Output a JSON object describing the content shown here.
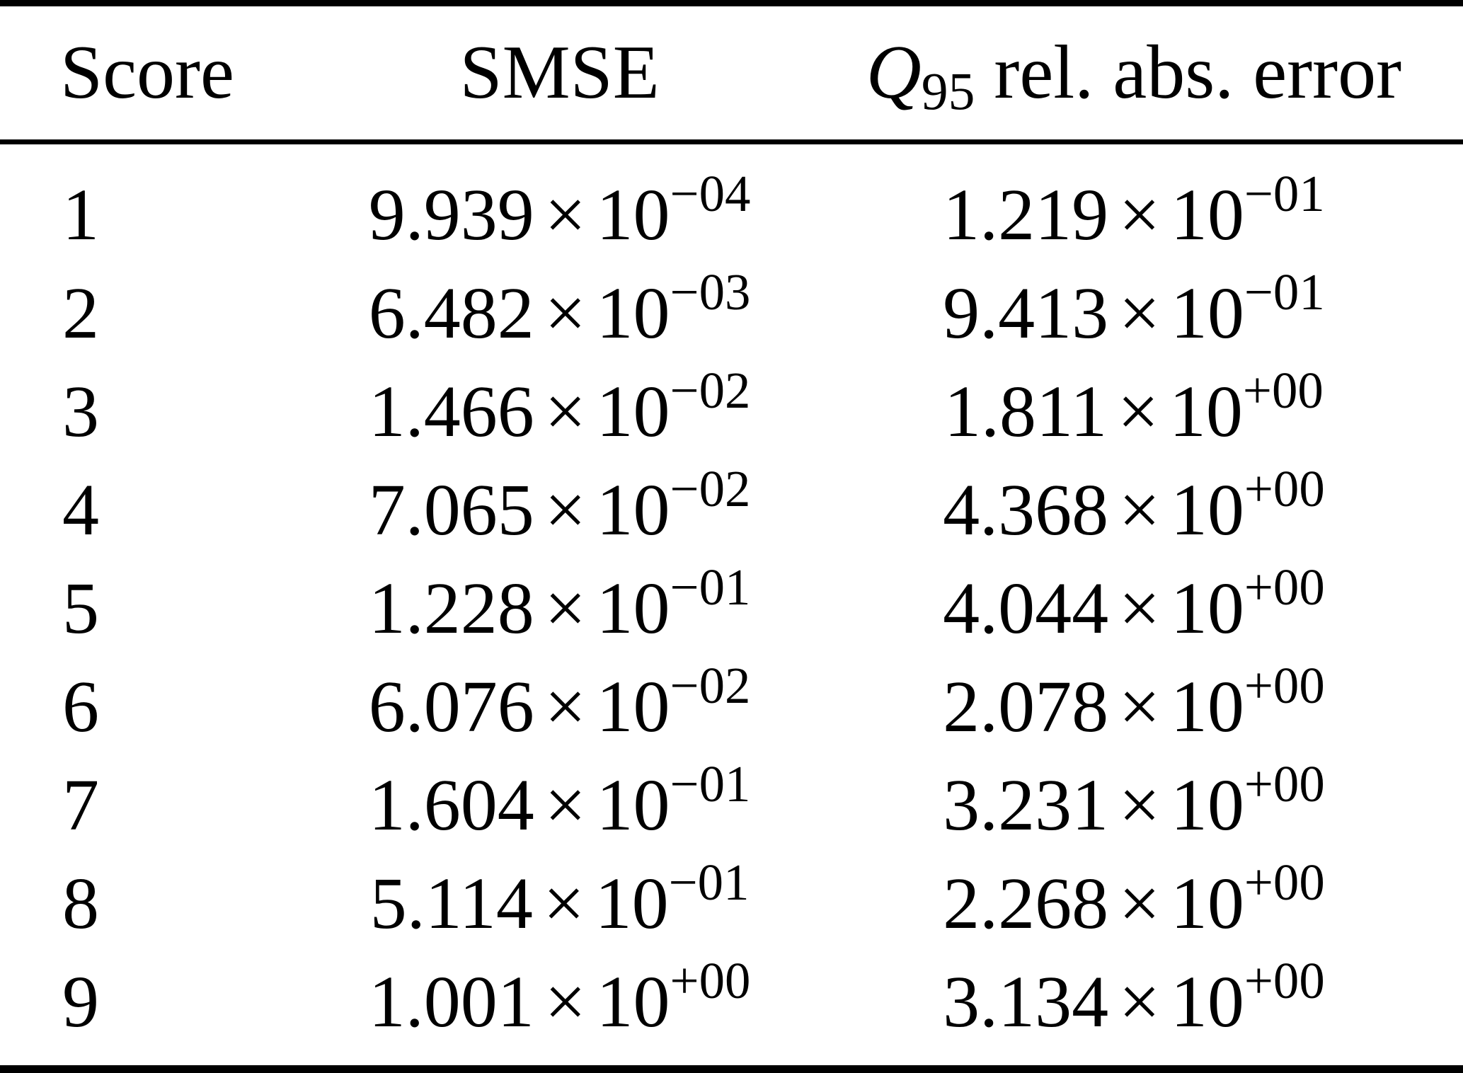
{
  "colors": {
    "background": "#ffffff",
    "text": "#000000",
    "rule": "#000000"
  },
  "table": {
    "headers": {
      "score": "Score",
      "smse": "SMSE",
      "q95": {
        "symbol": "Q",
        "subscript": "95",
        "rest": "rel. abs. error"
      }
    },
    "notation": {
      "times": "×",
      "base": "10"
    },
    "rows": [
      {
        "score": "1",
        "smse": {
          "mantissa": "9.939",
          "exponent": "−04"
        },
        "q95": {
          "mantissa": "1.219",
          "exponent": "−01"
        }
      },
      {
        "score": "2",
        "smse": {
          "mantissa": "6.482",
          "exponent": "−03"
        },
        "q95": {
          "mantissa": "9.413",
          "exponent": "−01"
        }
      },
      {
        "score": "3",
        "smse": {
          "mantissa": "1.466",
          "exponent": "−02"
        },
        "q95": {
          "mantissa": "1.811",
          "exponent": "+00"
        }
      },
      {
        "score": "4",
        "smse": {
          "mantissa": "7.065",
          "exponent": "−02"
        },
        "q95": {
          "mantissa": "4.368",
          "exponent": "+00"
        }
      },
      {
        "score": "5",
        "smse": {
          "mantissa": "1.228",
          "exponent": "−01"
        },
        "q95": {
          "mantissa": "4.044",
          "exponent": "+00"
        }
      },
      {
        "score": "6",
        "smse": {
          "mantissa": "6.076",
          "exponent": "−02"
        },
        "q95": {
          "mantissa": "2.078",
          "exponent": "+00"
        }
      },
      {
        "score": "7",
        "smse": {
          "mantissa": "1.604",
          "exponent": "−01"
        },
        "q95": {
          "mantissa": "3.231",
          "exponent": "+00"
        }
      },
      {
        "score": "8",
        "smse": {
          "mantissa": "5.114",
          "exponent": "−01"
        },
        "q95": {
          "mantissa": "2.268",
          "exponent": "+00"
        }
      },
      {
        "score": "9",
        "smse": {
          "mantissa": "1.001",
          "exponent": "+00"
        },
        "q95": {
          "mantissa": "3.134",
          "exponent": "+00"
        }
      }
    ]
  },
  "chart_data": {
    "type": "table",
    "columns": [
      "Score",
      "SMSE",
      "Q95 rel. abs. error"
    ],
    "rows": [
      [
        1,
        0.0009939,
        0.1219
      ],
      [
        2,
        0.006482,
        0.9413
      ],
      [
        3,
        0.01466,
        1.811
      ],
      [
        4,
        0.07065,
        4.368
      ],
      [
        5,
        0.1228,
        4.044
      ],
      [
        6,
        0.06076,
        2.078
      ],
      [
        7,
        0.1604,
        3.231
      ],
      [
        8,
        0.5114,
        2.268
      ],
      [
        9,
        1.001,
        3.134
      ]
    ]
  }
}
